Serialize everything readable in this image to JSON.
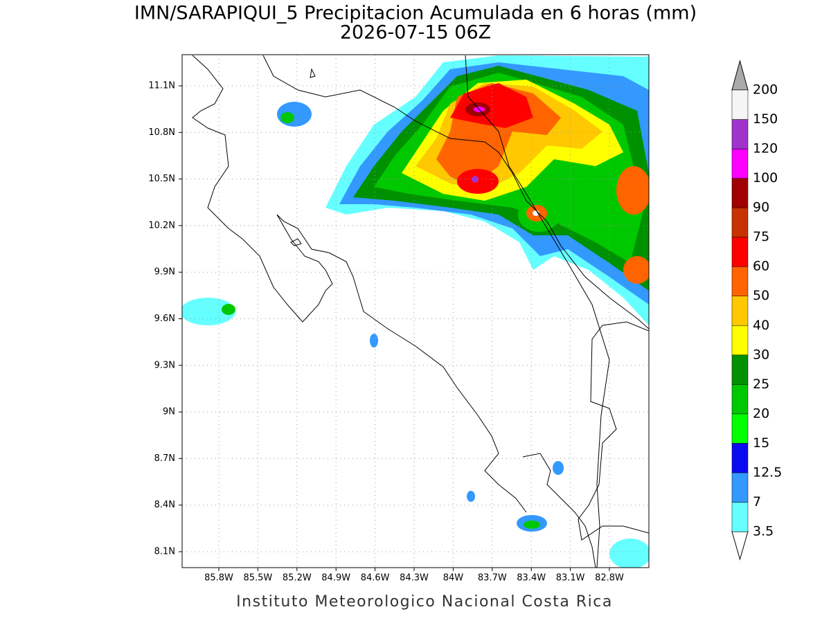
{
  "header": {
    "title": "IMN/SARAPIQUI_5 Precipitacion Acumulada en 6 horas (mm)",
    "subtitle": "2026-07-15 06Z"
  },
  "map": {
    "lon_ticks": [
      {
        "value": -85.8,
        "label": "85.8W"
      },
      {
        "value": -85.5,
        "label": "85.5W"
      },
      {
        "value": -85.2,
        "label": "85.2W"
      },
      {
        "value": -84.9,
        "label": "84.9W"
      },
      {
        "value": -84.6,
        "label": "84.6W"
      },
      {
        "value": -84.3,
        "label": "84.3W"
      },
      {
        "value": -84.0,
        "label": "84W"
      },
      {
        "value": -83.7,
        "label": "83.7W"
      },
      {
        "value": -83.4,
        "label": "83.4W"
      },
      {
        "value": -83.1,
        "label": "83.1W"
      },
      {
        "value": -82.8,
        "label": "82.8W"
      }
    ],
    "lat_ticks": [
      {
        "value": 8.1,
        "label": "8.1N"
      },
      {
        "value": 8.4,
        "label": "8.4N"
      },
      {
        "value": 8.7,
        "label": "8.7N"
      },
      {
        "value": 9.0,
        "label": "9N"
      },
      {
        "value": 9.3,
        "label": "9.3N"
      },
      {
        "value": 9.6,
        "label": "9.6N"
      },
      {
        "value": 9.9,
        "label": "9.9N"
      },
      {
        "value": 10.2,
        "label": "10.2N"
      },
      {
        "value": 10.5,
        "label": "10.5N"
      },
      {
        "value": 10.8,
        "label": "10.8N"
      },
      {
        "value": 11.1,
        "label": "11.1N"
      }
    ]
  },
  "colorbar": {
    "levels": [
      3.5,
      7,
      12.5,
      15,
      20,
      25,
      30,
      40,
      50,
      60,
      75,
      90,
      100,
      120,
      150,
      200
    ],
    "colors": [
      "#66ffff",
      "#3399ff",
      "#0a0af0",
      "#00ff00",
      "#00c800",
      "#009100",
      "#ffff00",
      "#ffc800",
      "#ff6400",
      "#ff0000",
      "#c83200",
      "#a00000",
      "#ff00ff",
      "#a033cc",
      "#f5f5f5"
    ],
    "over_color": "#aaaaaa",
    "under_color": "#ffffff"
  },
  "footer": "Instituto Meteorologico Nacional Costa Rica"
}
